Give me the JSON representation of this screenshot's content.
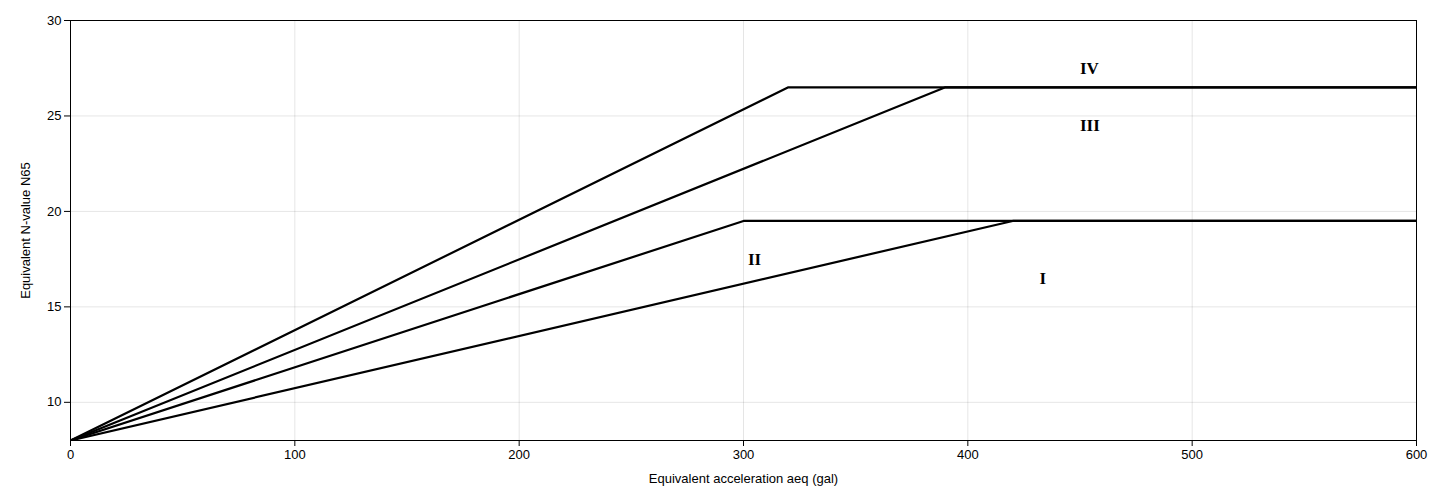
{
  "chart_data": {
    "type": "line",
    "xlabel": "Equivalent acceleration aeq (gal)",
    "ylabel": "Equivalent N-value N65",
    "xlim": [
      0,
      600
    ],
    "ylim": [
      8,
      30
    ],
    "xticks": [
      0,
      100,
      200,
      300,
      400,
      500,
      600
    ],
    "yticks": [
      10,
      15,
      20,
      25,
      30
    ],
    "grid": true,
    "series": [
      {
        "name": "IV",
        "color": "#000000",
        "x": [
          0,
          320,
          600
        ],
        "values": [
          8,
          26.5,
          26.5
        ],
        "label_at": [
          450,
          27.5
        ]
      },
      {
        "name": "III",
        "color": "#000000",
        "x": [
          0,
          390,
          600
        ],
        "values": [
          8,
          26.5,
          26.5
        ],
        "label_at": [
          450,
          24.5
        ]
      },
      {
        "name": "II",
        "color": "#000000",
        "x": [
          0,
          300,
          600
        ],
        "values": [
          8,
          19.5,
          19.5
        ],
        "label_at": [
          302,
          17.5
        ]
      },
      {
        "name": "I",
        "color": "#000000",
        "x": [
          0,
          420,
          600
        ],
        "values": [
          8,
          19.5,
          19.5
        ],
        "label_at": [
          432,
          16.5
        ]
      }
    ]
  }
}
